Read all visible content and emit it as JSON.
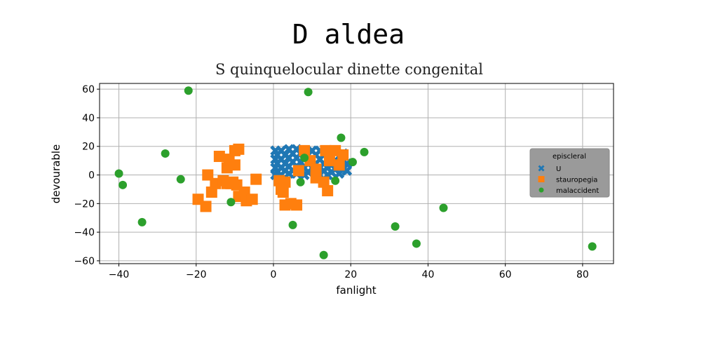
{
  "chart_data": {
    "type": "scatter",
    "title": "D aldea",
    "subtitle": "S quinquelocular dinette congenital",
    "xlabel": "fanlight",
    "ylabel": "devourable",
    "xlim": [
      -45,
      88
    ],
    "ylim": [
      -62,
      64
    ],
    "xticks": [
      -40,
      -20,
      0,
      20,
      40,
      60,
      80
    ],
    "yticks": [
      -60,
      -40,
      -20,
      0,
      20,
      40,
      60
    ],
    "grid": true,
    "legend": {
      "title": "episcleral",
      "position": "right"
    },
    "series": [
      {
        "name": "U",
        "color": "#1f77b4",
        "marker": "x",
        "points": [
          [
            0.5,
            17
          ],
          [
            0.5,
            11
          ],
          [
            0.5,
            5
          ],
          [
            0.5,
            0
          ],
          [
            1,
            14
          ],
          [
            1,
            8
          ],
          [
            1,
            2
          ],
          [
            2,
            17
          ],
          [
            2,
            11
          ],
          [
            2,
            5
          ],
          [
            2,
            0
          ],
          [
            3,
            14
          ],
          [
            3,
            8
          ],
          [
            3,
            3
          ],
          [
            4,
            18
          ],
          [
            4,
            12
          ],
          [
            4,
            6
          ],
          [
            4,
            1
          ],
          [
            5,
            15
          ],
          [
            5,
            9
          ],
          [
            5,
            3
          ],
          [
            6,
            18
          ],
          [
            6,
            12
          ],
          [
            6,
            6
          ],
          [
            6,
            1
          ],
          [
            7,
            15
          ],
          [
            7,
            9
          ],
          [
            7,
            4
          ],
          [
            8,
            17
          ],
          [
            8,
            11
          ],
          [
            8,
            5
          ],
          [
            8,
            0
          ],
          [
            9,
            14
          ],
          [
            9,
            8
          ],
          [
            9,
            2
          ],
          [
            10,
            17
          ],
          [
            10,
            11
          ],
          [
            10,
            5
          ],
          [
            11,
            14
          ],
          [
            11,
            8
          ],
          [
            11,
            2
          ],
          [
            12,
            17
          ],
          [
            12,
            11
          ],
          [
            12,
            5
          ],
          [
            12,
            0
          ],
          [
            13,
            14
          ],
          [
            13,
            8
          ],
          [
            13,
            3
          ],
          [
            14,
            17
          ],
          [
            14,
            11
          ],
          [
            14,
            5
          ],
          [
            14,
            0
          ],
          [
            15,
            13
          ],
          [
            15,
            7
          ],
          [
            15,
            2
          ],
          [
            16,
            16
          ],
          [
            16,
            10
          ],
          [
            16,
            4
          ],
          [
            17,
            13
          ],
          [
            17,
            7
          ],
          [
            17,
            1
          ],
          [
            18,
            10
          ],
          [
            18,
            4
          ],
          [
            18,
            15
          ],
          [
            19,
            8
          ],
          [
            19,
            3
          ]
        ]
      },
      {
        "name": "stauropegia",
        "color": "#ff7f0e",
        "marker": "s",
        "points": [
          [
            -19.5,
            -17
          ],
          [
            -17.5,
            -22
          ],
          [
            -17,
            0
          ],
          [
            -16,
            -12
          ],
          [
            -15,
            -6
          ],
          [
            -14,
            13
          ],
          [
            -13,
            -4
          ],
          [
            -12,
            5
          ],
          [
            -12,
            -6
          ],
          [
            -11.5,
            11
          ],
          [
            -11,
            -6
          ],
          [
            -10.5,
            -5
          ],
          [
            -10,
            7
          ],
          [
            -10,
            17
          ],
          [
            -9.5,
            -7
          ],
          [
            -9,
            18
          ],
          [
            -9,
            -15
          ],
          [
            -7.5,
            -12
          ],
          [
            -7,
            -18
          ],
          [
            -5.5,
            -17
          ],
          [
            -4.5,
            -3
          ],
          [
            1.5,
            -4
          ],
          [
            2,
            -10
          ],
          [
            2.5,
            -12
          ],
          [
            3,
            -5
          ],
          [
            3,
            -21
          ],
          [
            4.5,
            -20
          ],
          [
            6,
            -21
          ],
          [
            6.5,
            3
          ],
          [
            8,
            17
          ],
          [
            9.5,
            10
          ],
          [
            11,
            -2
          ],
          [
            11,
            4
          ],
          [
            13,
            -5
          ],
          [
            13.5,
            17
          ],
          [
            14,
            -11
          ],
          [
            14.5,
            10
          ],
          [
            16,
            17
          ],
          [
            17,
            7
          ],
          [
            18,
            14
          ]
        ]
      },
      {
        "name": "malaccident",
        "color": "#2ca02c",
        "marker": "o",
        "points": [
          [
            -40,
            1
          ],
          [
            -39,
            -7
          ],
          [
            -34,
            -33
          ],
          [
            -28,
            15
          ],
          [
            -24,
            -3
          ],
          [
            -22,
            59
          ],
          [
            -11,
            -19
          ],
          [
            5,
            -35
          ],
          [
            7,
            -5
          ],
          [
            8,
            12
          ],
          [
            9,
            58
          ],
          [
            13,
            -56
          ],
          [
            16,
            -4
          ],
          [
            17.5,
            26
          ],
          [
            20.5,
            9
          ],
          [
            23.5,
            16
          ],
          [
            31.5,
            -36
          ],
          [
            37,
            -48
          ],
          [
            44,
            -23
          ],
          [
            82.5,
            -50
          ]
        ]
      }
    ]
  }
}
